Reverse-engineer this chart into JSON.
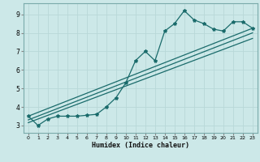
{
  "title": "",
  "xlabel": "Humidex (Indice chaleur)",
  "xlim": [
    -0.5,
    23.5
  ],
  "ylim": [
    2.6,
    9.6
  ],
  "xticks": [
    0,
    1,
    2,
    3,
    4,
    5,
    6,
    7,
    8,
    9,
    10,
    11,
    12,
    13,
    14,
    15,
    16,
    17,
    18,
    19,
    20,
    21,
    22,
    23
  ],
  "yticks": [
    3,
    4,
    5,
    6,
    7,
    8,
    9
  ],
  "bg_color": "#cce8e8",
  "grid_color": "#b8d8d8",
  "line_color": "#1a6b6b",
  "line1_x": [
    0,
    1,
    2,
    3,
    4,
    5,
    6,
    7,
    8,
    9,
    10,
    11,
    12,
    13,
    14,
    15,
    16,
    17,
    18,
    19,
    20,
    21,
    22,
    23
  ],
  "line1_y": [
    3.5,
    3.0,
    3.35,
    3.5,
    3.5,
    3.5,
    3.55,
    3.6,
    4.0,
    4.5,
    5.3,
    6.5,
    7.0,
    6.5,
    8.1,
    8.5,
    9.2,
    8.7,
    8.5,
    8.2,
    8.1,
    8.6,
    8.6,
    8.25
  ],
  "line2_x": [
    0,
    23
  ],
  "line2_y": [
    3.5,
    8.25
  ],
  "line3_x": [
    0,
    23
  ],
  "line3_y": [
    3.3,
    8.0
  ],
  "line4_x": [
    0,
    23
  ],
  "line4_y": [
    3.15,
    7.7
  ]
}
